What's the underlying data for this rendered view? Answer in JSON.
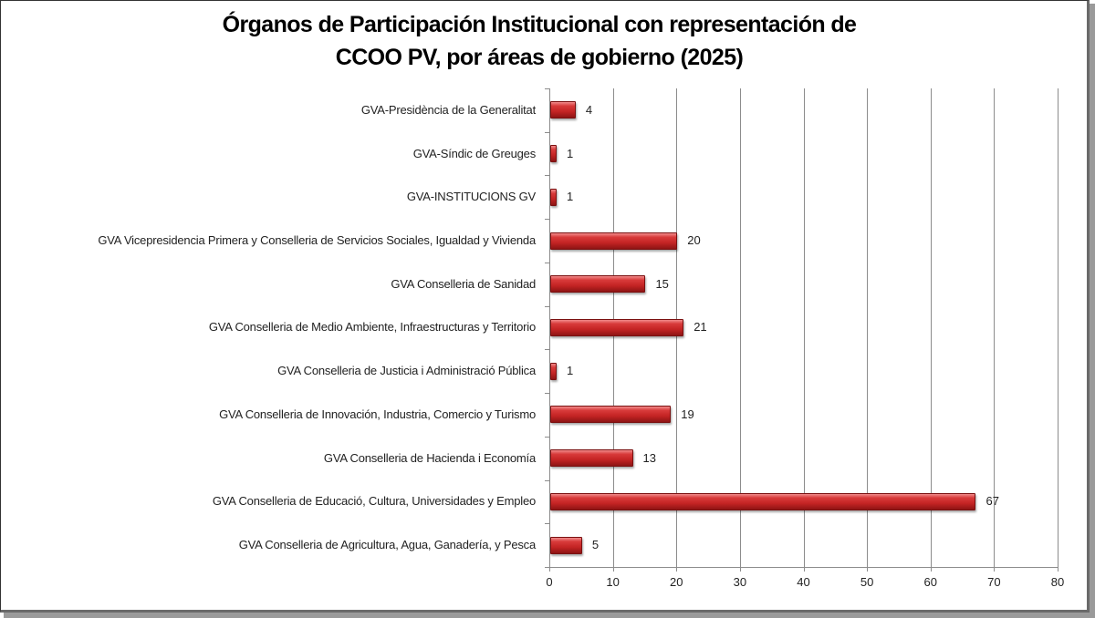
{
  "chart_data": {
    "type": "bar",
    "orientation": "horizontal",
    "title": "Órganos de Participación Institucional con representación de CCOO PV, por áreas de gobierno (2025)",
    "title_lines": [
      "Órganos de Participación Institucional con representación de",
      "CCOO PV, por áreas de gobierno (2025)"
    ],
    "categories": [
      "GVA-Presidència de la Generalitat",
      "GVA-Síndic de Greuges",
      "GVA-INSTITUCIONS GV",
      "GVA Vicepresidencia Primera y Conselleria de Servicios Sociales, Igualdad y Vivienda",
      "GVA Conselleria de Sanidad",
      "GVA Conselleria de Medio Ambiente, Infraestructuras y Territorio",
      "GVA Conselleria de Justicia i Administració Pública",
      "GVA Conselleria de Innovación, Industria, Comercio y Turismo",
      "GVA Conselleria de Hacienda i Economía",
      "GVA Conselleria de Educació, Cultura, Universidades y Empleo",
      "GVA Conselleria de Agricultura, Agua, Ganadería, y Pesca"
    ],
    "values": [
      4,
      1,
      1,
      20,
      15,
      21,
      1,
      19,
      13,
      67,
      5
    ],
    "xlabel": "",
    "ylabel": "",
    "xlim": [
      0,
      80
    ],
    "xticks": [
      0,
      10,
      20,
      30,
      40,
      50,
      60,
      70,
      80
    ],
    "grid": "vertical",
    "legend": "none",
    "data_labels": true,
    "bar_color": "#c42424"
  }
}
